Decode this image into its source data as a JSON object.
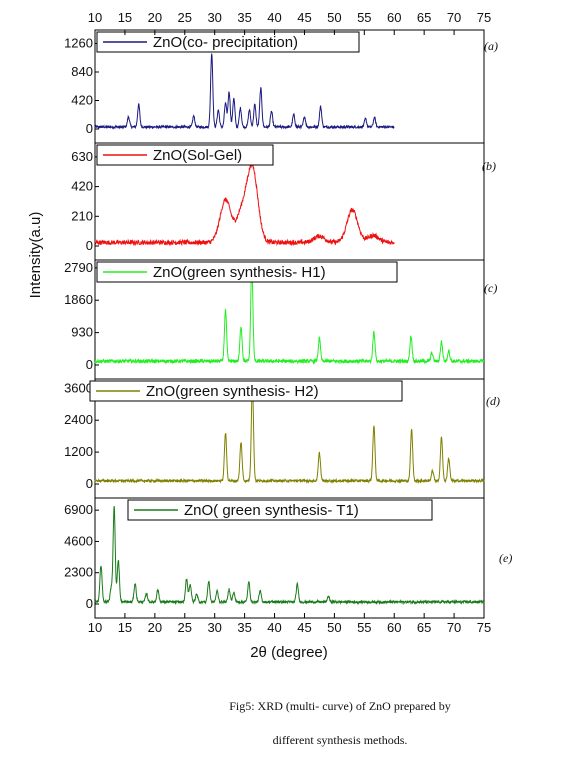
{
  "chart_data": {
    "type": "line",
    "xlabel": "2θ (degree)",
    "ylabel": "Intensity(a.u)",
    "x_ticks": [
      10,
      15,
      20,
      25,
      30,
      35,
      40,
      45,
      50,
      55,
      60,
      65,
      70,
      75
    ],
    "xlim": [
      10,
      75
    ],
    "panels": [
      {
        "tag": "(a)",
        "legend": "ZnO(co- precipitation)",
        "color": "#1a1a80",
        "x_range": [
          10,
          60
        ],
        "ylim": [
          0,
          1400
        ],
        "y_ticks": [
          "0",
          "420",
          "840",
          "1260"
        ],
        "baseline": 30,
        "noise": 18,
        "peaks": [
          {
            "x": 15.6,
            "y": 150
          },
          {
            "x": 17.3,
            "y": 330
          },
          {
            "x": 26.5,
            "y": 160
          },
          {
            "x": 29.5,
            "y": 1090
          },
          {
            "x": 30.6,
            "y": 250
          },
          {
            "x": 31.8,
            "y": 350
          },
          {
            "x": 32.4,
            "y": 520
          },
          {
            "x": 33.2,
            "y": 420
          },
          {
            "x": 34.3,
            "y": 280
          },
          {
            "x": 35.8,
            "y": 250
          },
          {
            "x": 36.7,
            "y": 330
          },
          {
            "x": 37.7,
            "y": 570
          },
          {
            "x": 39.5,
            "y": 230
          },
          {
            "x": 43.2,
            "y": 180
          },
          {
            "x": 45.0,
            "y": 150
          },
          {
            "x": 47.7,
            "y": 300
          },
          {
            "x": 55.2,
            "y": 120
          },
          {
            "x": 56.7,
            "y": 140
          }
        ]
      },
      {
        "tag": "(b)",
        "legend": "ZnO(Sol-Gel)",
        "color": "#ee1111",
        "x_range": [
          10,
          60
        ],
        "ylim": [
          0,
          700
        ],
        "y_ticks": [
          "0",
          "210",
          "420",
          "630"
        ],
        "baseline": 25,
        "noise": 16,
        "broad": true,
        "peaks": [
          {
            "x": 31.8,
            "y": 300
          },
          {
            "x": 34.5,
            "y": 200
          },
          {
            "x": 36.3,
            "y": 520
          },
          {
            "x": 47.5,
            "y": 45
          },
          {
            "x": 53.0,
            "y": 230
          },
          {
            "x": 56.5,
            "y": 50
          }
        ]
      },
      {
        "tag": "(c)",
        "legend": "ZnO(green synthesis- H1)",
        "color": "#22ee22",
        "x_range": [
          10,
          75
        ],
        "ylim": [
          0,
          2900
        ],
        "y_ticks": [
          "0",
          "930",
          "1860",
          "2790"
        ],
        "baseline": 110,
        "noise": 50,
        "peaks": [
          {
            "x": 31.8,
            "y": 1450
          },
          {
            "x": 34.4,
            "y": 1000
          },
          {
            "x": 36.2,
            "y": 2750
          },
          {
            "x": 47.5,
            "y": 650
          },
          {
            "x": 56.6,
            "y": 850
          },
          {
            "x": 62.8,
            "y": 720
          },
          {
            "x": 66.3,
            "y": 240
          },
          {
            "x": 67.9,
            "y": 560
          },
          {
            "x": 69.1,
            "y": 300
          }
        ]
      },
      {
        "tag": "(d)",
        "legend": "ZnO(green synthesis- H2)",
        "color": "#808000",
        "x_range": [
          10,
          75
        ],
        "ylim": [
          0,
          3800
        ],
        "y_ticks": [
          "0",
          "1200",
          "2400",
          "3600"
        ],
        "baseline": 120,
        "noise": 45,
        "peaks": [
          {
            "x": 31.8,
            "y": 1800
          },
          {
            "x": 34.4,
            "y": 1450
          },
          {
            "x": 36.3,
            "y": 3650
          },
          {
            "x": 47.5,
            "y": 1050
          },
          {
            "x": 56.6,
            "y": 2080
          },
          {
            "x": 62.9,
            "y": 1920
          },
          {
            "x": 66.4,
            "y": 380
          },
          {
            "x": 67.9,
            "y": 1650
          },
          {
            "x": 69.1,
            "y": 850
          }
        ]
      },
      {
        "tag": "(e)",
        "legend": "ZnO(  green synthesis- T1)",
        "color": "#1a7a1a",
        "x_range": [
          10,
          75
        ],
        "ylim": [
          0,
          7500
        ],
        "y_ticks": [
          "0",
          "2300",
          "4600",
          "6900"
        ],
        "baseline": 150,
        "noise": 90,
        "peaks": [
          {
            "x": 11.0,
            "y": 2700
          },
          {
            "x": 12.7,
            "y": 1000
          },
          {
            "x": 13.2,
            "y": 7050
          },
          {
            "x": 13.9,
            "y": 3100
          },
          {
            "x": 16.7,
            "y": 1350
          },
          {
            "x": 18.6,
            "y": 600
          },
          {
            "x": 20.5,
            "y": 900
          },
          {
            "x": 25.3,
            "y": 1700
          },
          {
            "x": 25.9,
            "y": 1300
          },
          {
            "x": 27.0,
            "y": 600
          },
          {
            "x": 29.0,
            "y": 1500
          },
          {
            "x": 30.4,
            "y": 800
          },
          {
            "x": 32.4,
            "y": 950
          },
          {
            "x": 33.2,
            "y": 700
          },
          {
            "x": 35.7,
            "y": 1450
          },
          {
            "x": 37.6,
            "y": 800
          },
          {
            "x": 43.8,
            "y": 1300
          },
          {
            "x": 49.0,
            "y": 400
          }
        ]
      }
    ]
  },
  "caption": {
    "line1": "Fig5: XRD (multi- curve) of ZnO prepared by",
    "line2": "different synthesis methods."
  }
}
